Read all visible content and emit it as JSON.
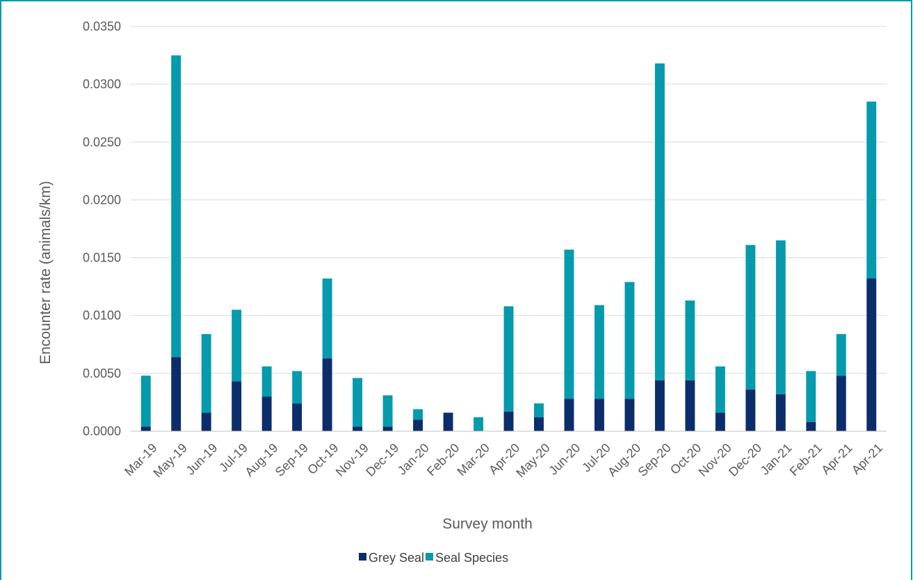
{
  "colors": {
    "grey_seal": "#0c2d6b",
    "seal_species": "#069aad",
    "frame": "#069aad",
    "grid": "#d9d9d9",
    "axis": "#bfbfbf"
  },
  "chart_data": {
    "type": "bar",
    "stacked": true,
    "categories": [
      "Mar-19",
      "May-19",
      "Jun-19",
      "Jul-19",
      "Aug-19",
      "Sep-19",
      "Oct-19",
      "Nov-19",
      "Dec-19",
      "Jan-20",
      "Feb-20",
      "Mar-20",
      "Apr-20",
      "May-20",
      "Jun-20",
      "Jul-20",
      "Aug-20",
      "Sep-20",
      "Oct-20",
      "Nov-20",
      "Dec-20",
      "Jan-21",
      "Feb-21",
      "Apr-21",
      "Apr-21"
    ],
    "series": [
      {
        "name": "Grey Seal",
        "values": [
          0.0004,
          0.0064,
          0.0016,
          0.0043,
          0.003,
          0.0024,
          0.0063,
          0.0004,
          0.0004,
          0.001,
          0.0016,
          0.0,
          0.0017,
          0.0012,
          0.0028,
          0.0028,
          0.0028,
          0.0044,
          0.0044,
          0.0016,
          0.0036,
          0.0032,
          0.0008,
          0.0048,
          0.0132
        ]
      },
      {
        "name": "Seal Species",
        "values": [
          0.0044,
          0.0261,
          0.0068,
          0.0062,
          0.0026,
          0.0028,
          0.0069,
          0.0042,
          0.0027,
          0.0009,
          0.0,
          0.0012,
          0.0091,
          0.0012,
          0.0129,
          0.0081,
          0.0101,
          0.0274,
          0.0069,
          0.004,
          0.0125,
          0.0133,
          0.0044,
          0.0036,
          0.0153
        ]
      }
    ],
    "ylim": [
      0,
      0.035
    ],
    "yticks": [
      "0.0000",
      "0.0050",
      "0.0100",
      "0.0150",
      "0.0200",
      "0.0250",
      "0.0300",
      "0.0350"
    ],
    "ylabel": "Encounter rate (animals/km)",
    "xlabel": "Survey month",
    "grid": true,
    "legend_position": "bottom"
  }
}
